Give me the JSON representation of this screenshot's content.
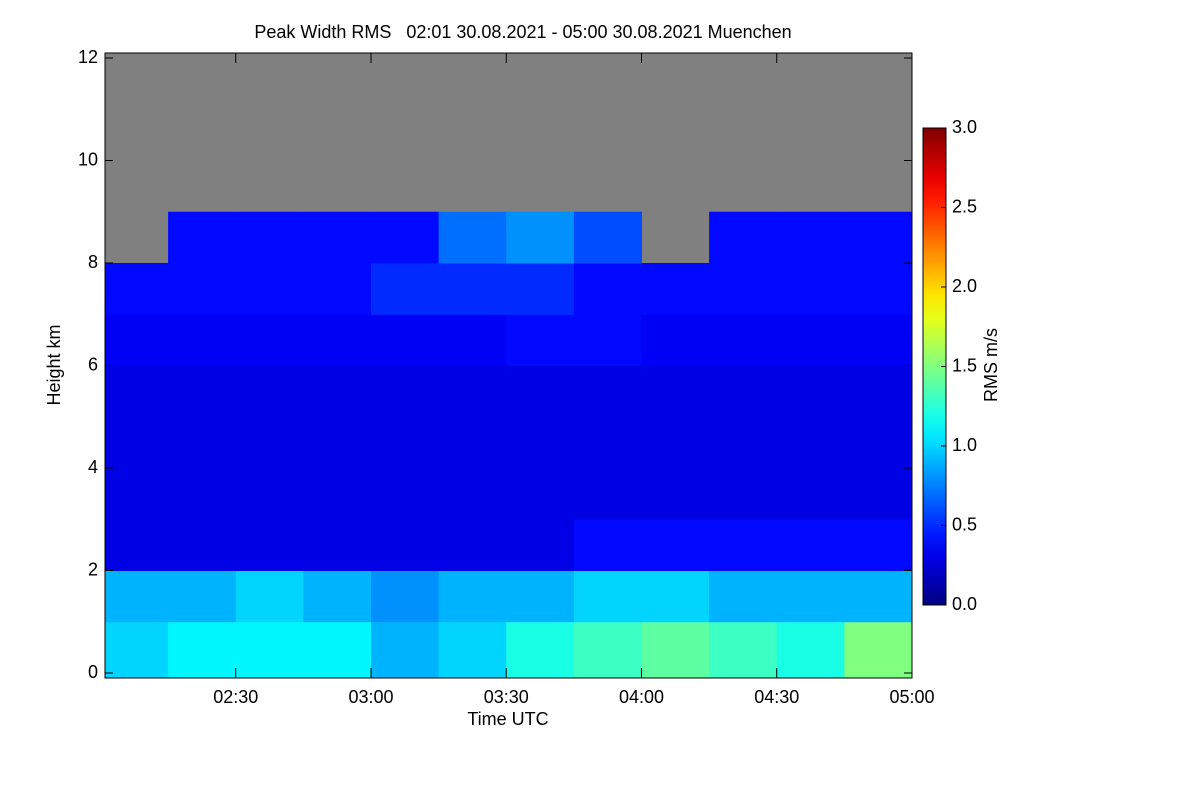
{
  "chart_data": {
    "type": "heatmap",
    "title": "Peak Width RMS   02:01 30.08.2021 - 05:00 30.08.2021 Muenchen",
    "x_label": "Time UTC",
    "y_label": "Height km",
    "colorbar_label": "RMS m/s",
    "colormap": "jet",
    "missing_color": "#808080",
    "xlim": [
      121,
      300
    ],
    "xticks": [
      {
        "value": 150,
        "label": "02:30"
      },
      {
        "value": 180,
        "label": "03:00"
      },
      {
        "value": 210,
        "label": "03:30"
      },
      {
        "value": 240,
        "label": "04:00"
      },
      {
        "value": 270,
        "label": "04:30"
      },
      {
        "value": 300,
        "label": "05:00"
      }
    ],
    "ylim": [
      0,
      12
    ],
    "yticks": [
      0,
      2,
      4,
      6,
      8,
      10,
      12
    ],
    "clim": [
      0,
      3
    ],
    "cticks": [
      {
        "value": 0,
        "label": "0.0"
      },
      0.5,
      {
        "value": 1,
        "label": "1.0"
      },
      1.5,
      {
        "value": 2,
        "label": "2.0"
      },
      2.5,
      {
        "value": 3,
        "label": "3.0"
      }
    ],
    "xbins": [
      121,
      135,
      150,
      165,
      180,
      195,
      210,
      225,
      240,
      255,
      270,
      285,
      300
    ],
    "ybins": [
      0,
      1,
      2,
      3,
      4,
      5,
      6,
      7,
      8,
      9,
      10,
      11,
      12
    ],
    "values": [
      [
        1.0,
        1.1,
        1.1,
        1.1,
        0.9,
        1.0,
        1.2,
        1.3,
        1.4,
        1.3,
        1.2,
        1.5
      ],
      [
        0.9,
        0.9,
        1.0,
        0.9,
        0.8,
        0.9,
        0.9,
        1.0,
        1.0,
        0.9,
        0.9,
        0.9
      ],
      [
        0.3,
        0.3,
        0.3,
        0.3,
        0.3,
        0.3,
        0.3,
        0.4,
        0.4,
        0.4,
        0.4,
        0.4
      ],
      [
        0.3,
        0.3,
        0.3,
        0.3,
        0.3,
        0.3,
        0.3,
        0.3,
        0.3,
        0.3,
        0.3,
        0.3
      ],
      [
        0.3,
        0.3,
        0.3,
        0.3,
        0.3,
        0.3,
        0.3,
        0.3,
        0.3,
        0.3,
        0.3,
        0.3
      ],
      [
        0.3,
        0.3,
        0.3,
        0.3,
        0.3,
        0.3,
        0.3,
        0.3,
        0.3,
        0.3,
        0.3,
        0.3
      ],
      [
        0.35,
        0.35,
        0.35,
        0.35,
        0.35,
        0.35,
        0.4,
        0.4,
        0.35,
        0.35,
        0.35,
        0.35
      ],
      [
        0.4,
        0.4,
        0.4,
        0.4,
        0.5,
        0.5,
        0.5,
        0.4,
        0.4,
        0.4,
        0.4,
        0.4
      ],
      [
        null,
        0.4,
        0.4,
        0.4,
        0.4,
        0.7,
        0.8,
        0.6,
        null,
        0.4,
        0.4,
        0.4
      ],
      [
        null,
        null,
        null,
        null,
        null,
        null,
        null,
        null,
        null,
        null,
        null,
        null
      ],
      [
        null,
        null,
        null,
        null,
        null,
        null,
        null,
        null,
        null,
        null,
        null,
        null
      ],
      [
        null,
        null,
        null,
        null,
        null,
        null,
        null,
        null,
        null,
        null,
        null,
        null
      ]
    ]
  }
}
